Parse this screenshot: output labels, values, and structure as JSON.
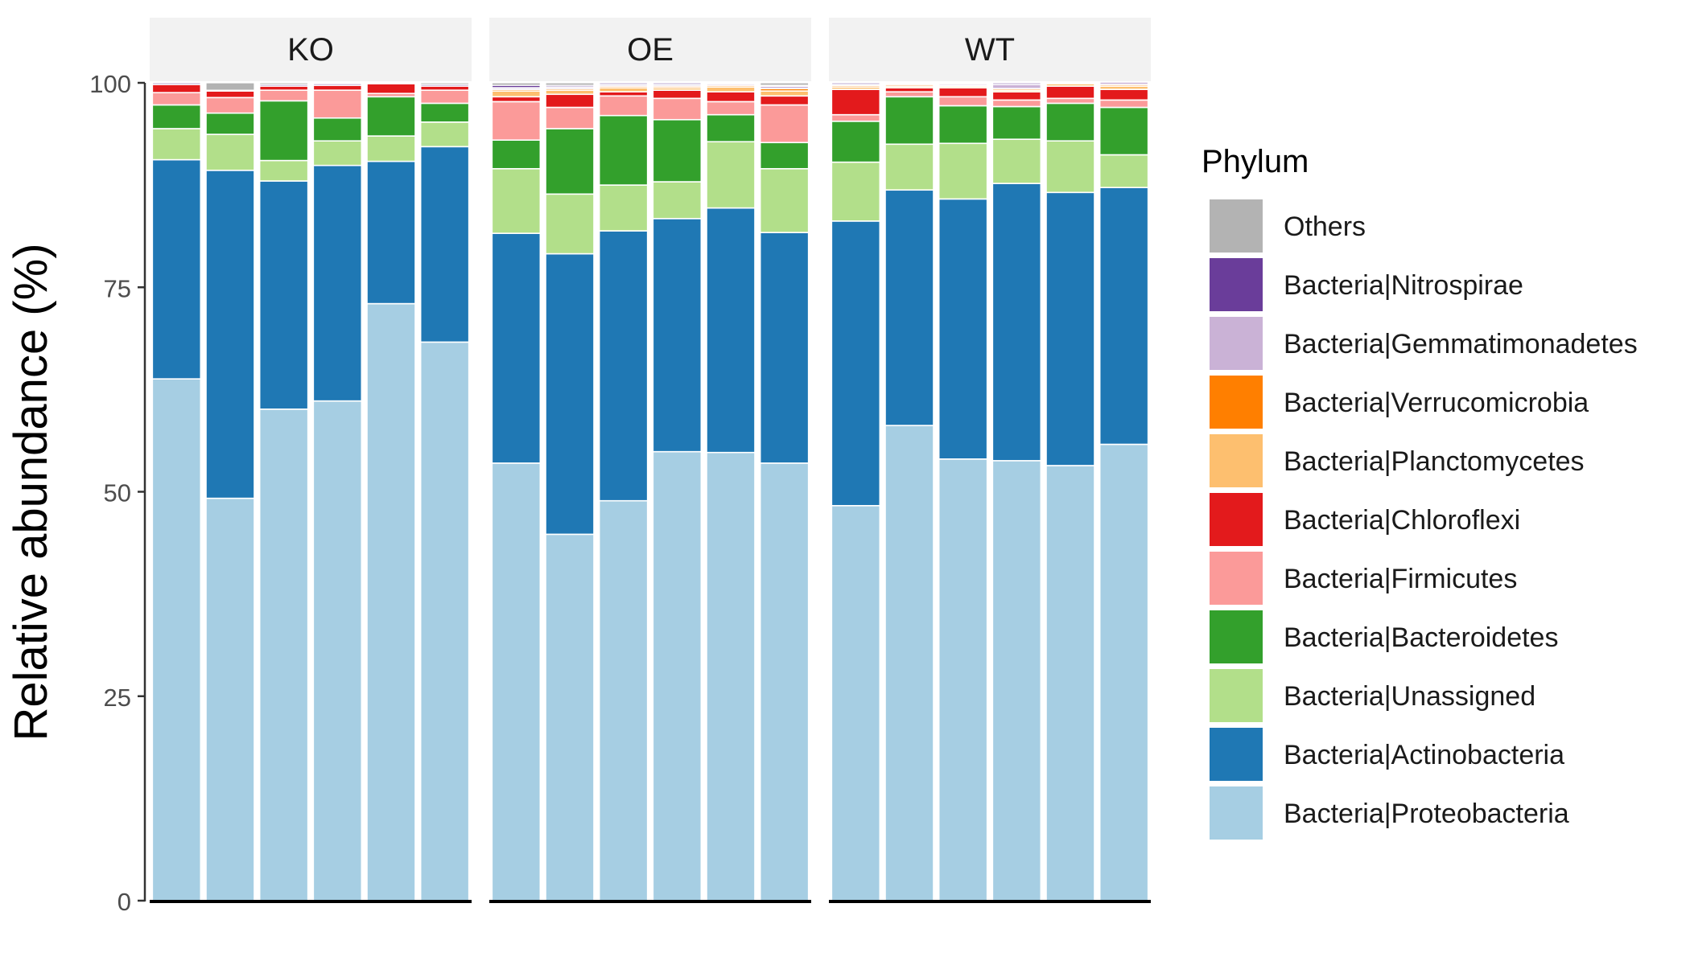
{
  "chart_data": {
    "type": "bar",
    "stacked": true,
    "ylabel": "Relative abundance (%)",
    "ylim": [
      0,
      100
    ],
    "yticks": [
      "0",
      "25",
      "50",
      "75",
      "100"
    ],
    "grid": false,
    "legend": {
      "title": "Phylum",
      "placement": "right"
    },
    "panels": [
      {
        "label": "KO",
        "bars": [
          [
            63.8,
            26.8,
            3.8,
            2.9,
            1.5,
            1.0,
            0.0,
            0.0,
            0.0,
            0.2
          ],
          [
            49.2,
            40.1,
            4.4,
            2.6,
            1.9,
            0.8,
            0.0,
            0.0,
            0.0,
            0.1
          ],
          [
            60.1,
            27.9,
            2.5,
            7.3,
            1.3,
            0.5,
            0.0,
            0.0,
            0.0,
            0.2
          ],
          [
            61.1,
            28.8,
            3.0,
            2.8,
            3.4,
            0.6,
            0.0,
            0.0,
            0.0,
            0.2
          ],
          [
            73.0,
            17.4,
            3.1,
            4.8,
            0.4,
            1.2,
            0.0,
            0.0,
            0.0,
            0.1
          ],
          [
            68.3,
            23.9,
            3.0,
            2.3,
            1.6,
            0.5,
            0.0,
            0.0,
            0.0,
            0.2
          ]
        ]
      },
      {
        "label": "OE",
        "bars": [
          [
            53.5,
            28.1,
            7.9,
            3.5,
            4.7,
            0.6,
            0.7,
            0.2,
            0.2,
            0.3
          ],
          [
            44.8,
            34.3,
            7.3,
            8.0,
            2.6,
            1.6,
            0.5,
            0.2,
            0.2,
            0.2
          ],
          [
            48.9,
            33.0,
            5.6,
            8.5,
            2.4,
            0.5,
            0.5,
            0.2,
            0.2,
            0.2
          ],
          [
            54.9,
            28.5,
            4.5,
            7.6,
            2.6,
            1.0,
            0.3,
            0.2,
            0.2,
            0.2
          ],
          [
            54.8,
            29.9,
            8.1,
            3.3,
            1.6,
            1.2,
            0.6,
            0.2,
            0.2,
            0.1
          ],
          [
            53.5,
            28.2,
            7.8,
            3.2,
            4.6,
            1.1,
            0.6,
            0.3,
            0.3,
            0.1
          ]
        ]
      },
      {
        "label": "WT",
        "bars": [
          [
            48.3,
            34.8,
            7.2,
            5.0,
            0.8,
            3.1,
            0.3,
            0.2,
            0.1,
            0.2
          ],
          [
            58.1,
            28.8,
            5.6,
            5.8,
            0.6,
            0.5,
            0.2,
            0.2,
            0.1,
            0.1
          ],
          [
            54.0,
            31.8,
            6.8,
            4.6,
            1.1,
            1.1,
            0.2,
            0.1,
            0.2,
            0.1
          ],
          [
            53.8,
            33.9,
            5.4,
            4.0,
            0.8,
            1.0,
            0.2,
            0.2,
            0.5,
            0.2
          ],
          [
            53.2,
            33.4,
            6.3,
            4.6,
            0.6,
            1.5,
            0.3,
            0.1,
            0.0,
            0.0
          ],
          [
            55.8,
            31.4,
            4.0,
            5.8,
            0.9,
            1.3,
            0.4,
            0.2,
            0.3,
            0.0
          ]
        ]
      }
    ],
    "series": [
      {
        "name": "Bacteria|Proteobacteria",
        "color": "#A6CEE3"
      },
      {
        "name": "Bacteria|Actinobacteria",
        "color": "#1F78B4"
      },
      {
        "name": "Bacteria|Unassigned",
        "color": "#B2DF8A"
      },
      {
        "name": "Bacteria|Bacteroidetes",
        "color": "#33A02C"
      },
      {
        "name": "Bacteria|Firmicutes",
        "color": "#FB9A99"
      },
      {
        "name": "Bacteria|Chloroflexi",
        "color": "#E31A1C"
      },
      {
        "name": "Bacteria|Planctomycetes",
        "color": "#FDBF6F"
      },
      {
        "name": "Bacteria|Verrucomicrobia",
        "color": "#FF7F00"
      },
      {
        "name": "Bacteria|Gemmatimonadetes",
        "color": "#CAB2D6"
      },
      {
        "name": "Bacteria|Nitrospirae",
        "color": "#6A3D9A"
      },
      {
        "name": "Others",
        "color": "#B3B3B3"
      }
    ]
  }
}
